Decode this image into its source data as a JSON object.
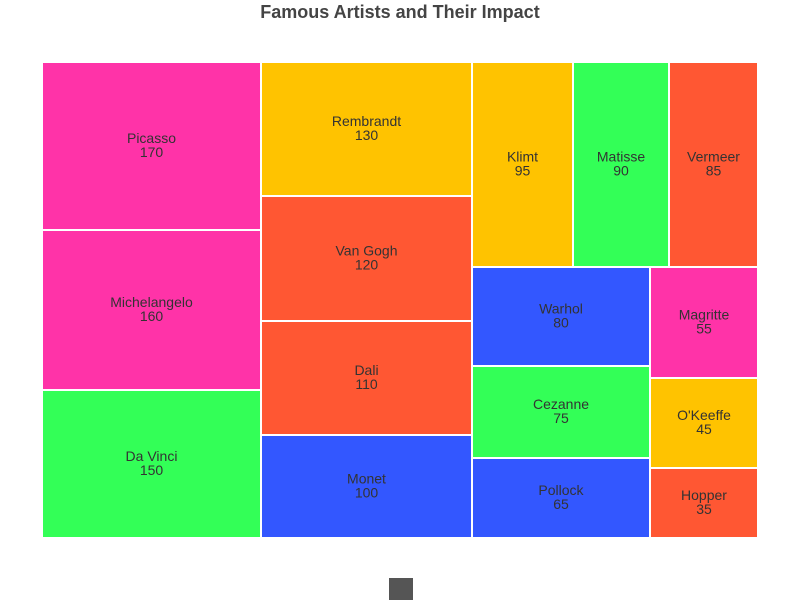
{
  "chart_data": {
    "type": "treemap",
    "title": "Famous Artists and Their Impact",
    "items": [
      {
        "name": "Picasso",
        "value": 170,
        "color": "#FF33A8"
      },
      {
        "name": "Michelangelo",
        "value": 160,
        "color": "#FF33A8"
      },
      {
        "name": "Da Vinci",
        "value": 150,
        "color": "#33FF57"
      },
      {
        "name": "Rembrandt",
        "value": 130,
        "color": "#FFC300"
      },
      {
        "name": "Van Gogh",
        "value": 120,
        "color": "#FF5733"
      },
      {
        "name": "Dali",
        "value": 110,
        "color": "#FF5733"
      },
      {
        "name": "Monet",
        "value": 100,
        "color": "#3357FF"
      },
      {
        "name": "Klimt",
        "value": 95,
        "color": "#FFC300"
      },
      {
        "name": "Matisse",
        "value": 90,
        "color": "#33FF57"
      },
      {
        "name": "Vermeer",
        "value": 85,
        "color": "#FF5733"
      },
      {
        "name": "Warhol",
        "value": 80,
        "color": "#3357FF"
      },
      {
        "name": "Cezanne",
        "value": 75,
        "color": "#33FF57"
      },
      {
        "name": "Pollock",
        "value": 65,
        "color": "#3357FF"
      },
      {
        "name": "Magritte",
        "value": 55,
        "color": "#FF33A8"
      },
      {
        "name": "O'Keeffe",
        "value": 45,
        "color": "#FFC300"
      },
      {
        "name": "Hopper",
        "value": 35,
        "color": "#FF5733"
      }
    ],
    "legend_color": "#555555"
  }
}
